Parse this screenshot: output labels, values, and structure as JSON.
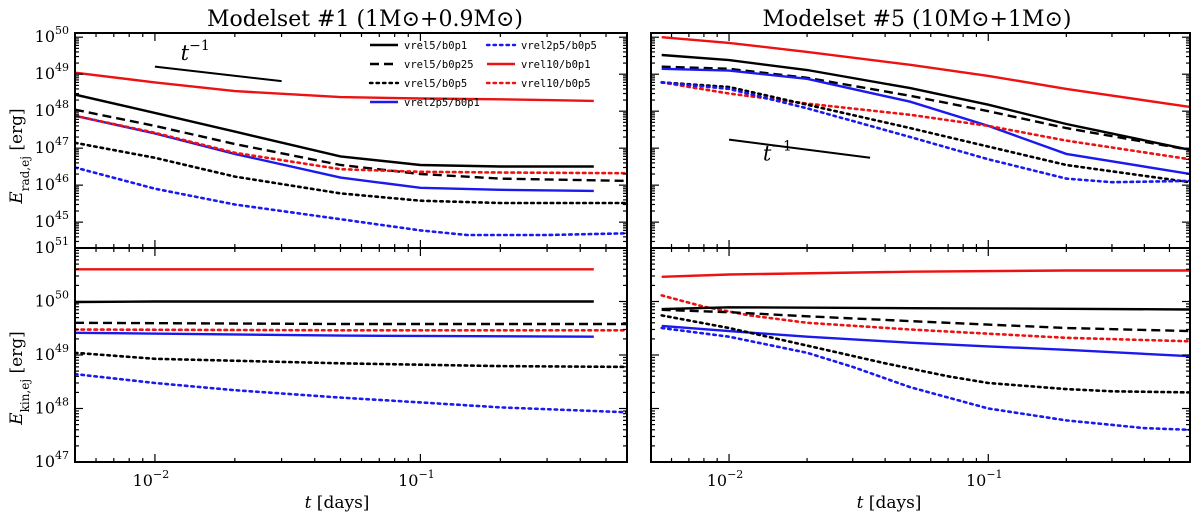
{
  "chart_data": [
    {
      "type": "line",
      "id": "rad1",
      "title": "Modelset #1 (1M⊙+0.9M⊙)",
      "ylabel": "E_rad,ej [erg]",
      "xlabel": "",
      "x_scale": "log",
      "y_scale": "log",
      "xlim": [
        0.005,
        0.6
      ],
      "ylim": [
        2e+44,
        1.3e+50
      ],
      "x_ticks": [
        {
          "v": 0.01,
          "base": "10",
          "exp": "−2"
        },
        {
          "v": 0.1,
          "base": "10",
          "exp": "−1"
        }
      ],
      "y_ticks": [
        {
          "v": 1e+45,
          "base": "10",
          "exp": "45"
        },
        {
          "v": 1e+46,
          "base": "10",
          "exp": "46"
        },
        {
          "v": 1e+47,
          "base": "10",
          "exp": "47"
        },
        {
          "v": 1e+48,
          "base": "10",
          "exp": "48"
        },
        {
          "v": 1e+49,
          "base": "10",
          "exp": "49"
        },
        {
          "v": 1e+50,
          "base": "10",
          "exp": "50"
        }
      ],
      "annotation": {
        "text": "t",
        "sup": "−1",
        "at": [
          0.0125,
          2.4e+49
        ],
        "line": [
          [
            0.01,
            1.6e+49
          ],
          [
            0.03,
            6.5e+48
          ]
        ]
      },
      "series": [
        {
          "name": "vrel10/b0p1",
          "color": "#ee1111",
          "style": "solid",
          "x": [
            0.005,
            0.01,
            0.02,
            0.05,
            0.1,
            0.2,
            0.3,
            0.45
          ],
          "y": [
            1.1e+49,
            6e+48,
            3.5e+48,
            2.4e+48,
            2.2e+48,
            2.1e+48,
            2e+48,
            1.9e+48
          ]
        },
        {
          "name": "vrel5/b0p1",
          "color": "#000000",
          "style": "solid",
          "x": [
            0.005,
            0.01,
            0.02,
            0.05,
            0.1,
            0.2,
            0.45
          ],
          "y": [
            2.8e+48,
            9e+47,
            2.8e+47,
            6e+46,
            3.5e+46,
            3.2e+46,
            3.2e+46
          ]
        },
        {
          "name": "vrel5/b0p25",
          "color": "#000000",
          "style": "dash",
          "x": [
            0.005,
            0.01,
            0.02,
            0.05,
            0.1,
            0.2,
            0.6
          ],
          "y": [
            1.1e+48,
            4e+47,
            1.3e+47,
            3.5e+46,
            2e+46,
            1.5e+46,
            1.3e+46
          ]
        },
        {
          "name": "vrel2p5/b0p1",
          "color": "#1a1aee",
          "style": "solid",
          "x": [
            0.005,
            0.01,
            0.02,
            0.05,
            0.1,
            0.2,
            0.45
          ],
          "y": [
            7.5e+47,
            2.5e+47,
            7e+46,
            1.6e+46,
            8.5e+45,
            7.5e+45,
            7e+45
          ]
        },
        {
          "name": "vrel10/b0p5",
          "color": "#ee1111",
          "style": "dot",
          "x": [
            0.005,
            0.01,
            0.02,
            0.05,
            0.1,
            0.2,
            0.6
          ],
          "y": [
            7.5e+47,
            2.6e+47,
            7.5e+46,
            2.7e+46,
            2.3e+46,
            2.2e+46,
            2.1e+46
          ]
        },
        {
          "name": "vrel5/b0p5",
          "color": "#000000",
          "style": "dot",
          "x": [
            0.005,
            0.01,
            0.02,
            0.05,
            0.1,
            0.2,
            0.6
          ],
          "y": [
            1.4e+47,
            5.5e+46,
            1.7e+46,
            6e+45,
            3.8e+45,
            3.3e+45,
            3.3e+45
          ]
        },
        {
          "name": "vrel2p5/b0p5",
          "color": "#1a1aee",
          "style": "dot",
          "x": [
            0.005,
            0.01,
            0.02,
            0.05,
            0.1,
            0.15,
            0.3,
            0.6
          ],
          "y": [
            3e+46,
            8e+45,
            3e+45,
            1.2e+45,
            6e+44,
            4.5e+44,
            4.5e+44,
            5e+44
          ]
        }
      ]
    },
    {
      "type": "line",
      "id": "rad5",
      "title": "Modelset #5 (10M⊙+1M⊙)",
      "ylabel": "",
      "xlabel": "",
      "x_scale": "log",
      "y_scale": "log",
      "xlim": [
        0.005,
        0.6
      ],
      "ylim": [
        2e+44,
        1.3e+50
      ],
      "x_ticks": [
        {
          "v": 0.01,
          "base": "10",
          "exp": "−2"
        },
        {
          "v": 0.1,
          "base": "10",
          "exp": "−1"
        }
      ],
      "y_ticks": [],
      "annotation": {
        "text": "t",
        "sup": "−1",
        "at": [
          0.0135,
          4.6e+46
        ],
        "line": [
          [
            0.01,
            1.7e+47
          ],
          [
            0.035,
            5.5e+46
          ]
        ]
      },
      "series": [
        {
          "name": "vrel10/b0p1",
          "color": "#ee1111",
          "style": "solid",
          "x": [
            0.0055,
            0.01,
            0.02,
            0.05,
            0.1,
            0.2,
            0.6
          ],
          "y": [
            1e+50,
            7e+49,
            4e+49,
            1.8e+49,
            9e+48,
            4e+48,
            1.3e+48
          ]
        },
        {
          "name": "vrel5/b0p1",
          "color": "#000000",
          "style": "solid",
          "x": [
            0.0055,
            0.01,
            0.02,
            0.05,
            0.1,
            0.2,
            0.6
          ],
          "y": [
            3.3e+49,
            2.4e+49,
            1.3e+49,
            4.2e+48,
            1.5e+48,
            4.5e+47,
            9e+46
          ]
        },
        {
          "name": "vrel5/b0p25",
          "color": "#000000",
          "style": "dash",
          "x": [
            0.0055,
            0.01,
            0.02,
            0.05,
            0.1,
            0.2,
            0.6
          ],
          "y": [
            1.6e+49,
            1.4e+49,
            8e+48,
            2.6e+48,
            1e+48,
            3.5e+47,
            9e+46
          ]
        },
        {
          "name": "vrel2p5/b0p1",
          "color": "#1a1aee",
          "style": "solid",
          "x": [
            0.0055,
            0.01,
            0.02,
            0.05,
            0.1,
            0.2,
            0.6
          ],
          "y": [
            1.4e+49,
            1.25e+49,
            7.5e+48,
            1.8e+48,
            4e+47,
            7e+46,
            2e+46
          ]
        },
        {
          "name": "vrel10/b0p5",
          "color": "#ee1111",
          "style": "dot",
          "x": [
            0.0055,
            0.01,
            0.02,
            0.05,
            0.1,
            0.2,
            0.6
          ],
          "y": [
            6e+48,
            3e+48,
            1.6e+48,
            8e+47,
            4e+47,
            1.6e+47,
            5e+46
          ]
        },
        {
          "name": "vrel5/b0p5",
          "color": "#000000",
          "style": "dot",
          "x": [
            0.0055,
            0.01,
            0.02,
            0.05,
            0.1,
            0.2,
            0.6
          ],
          "y": [
            6e+48,
            4.5e+48,
            1.5e+48,
            3.5e+47,
            1.1e+47,
            3.5e+46,
            1.2e+46
          ]
        },
        {
          "name": "vrel2p5/b0p5",
          "color": "#1a1aee",
          "style": "dot",
          "x": [
            0.0055,
            0.01,
            0.02,
            0.05,
            0.1,
            0.2,
            0.3,
            0.6
          ],
          "y": [
            6e+48,
            4e+48,
            1.2e+48,
            2e+47,
            5e+46,
            1.5e+46,
            1.2e+46,
            1.3e+46
          ]
        }
      ]
    },
    {
      "type": "line",
      "id": "kin1",
      "title": "",
      "ylabel": "E_kin,ej [erg]",
      "xlabel": "t [days]",
      "x_scale": "log",
      "y_scale": "log",
      "xlim": [
        0.005,
        0.6
      ],
      "ylim": [
        1e+47,
        1e+51
      ],
      "x_ticks": [
        {
          "v": 0.01,
          "base": "10",
          "exp": "−2"
        },
        {
          "v": 0.1,
          "base": "10",
          "exp": "−1"
        }
      ],
      "y_ticks": [
        {
          "v": 1e+47,
          "base": "10",
          "exp": "47"
        },
        {
          "v": 1e+48,
          "base": "10",
          "exp": "48"
        },
        {
          "v": 1e+49,
          "base": "10",
          "exp": "49"
        },
        {
          "v": 1e+50,
          "base": "10",
          "exp": "50"
        },
        {
          "v": 1e+51,
          "base": "10",
          "exp": "51"
        }
      ],
      "series": [
        {
          "name": "vrel10/b0p1",
          "color": "#ee1111",
          "style": "solid",
          "x": [
            0.005,
            0.45
          ],
          "y": [
            4e+50,
            4e+50
          ]
        },
        {
          "name": "vrel5/b0p1",
          "color": "#000000",
          "style": "solid",
          "x": [
            0.005,
            0.01,
            0.1,
            0.45
          ],
          "y": [
            9.8e+49,
            1e+50,
            1e+50,
            1e+50
          ]
        },
        {
          "name": "vrel5/b0p25",
          "color": "#000000",
          "style": "dash",
          "x": [
            0.005,
            0.05,
            0.6
          ],
          "y": [
            4e+49,
            3.8e+49,
            3.8e+49
          ]
        },
        {
          "name": "vrel10/b0p5",
          "color": "#ee1111",
          "style": "dot",
          "x": [
            0.005,
            0.05,
            0.6
          ],
          "y": [
            3e+49,
            2.9e+49,
            2.9e+49
          ]
        },
        {
          "name": "vrel2p5/b0p1",
          "color": "#1a1aee",
          "style": "solid",
          "x": [
            0.005,
            0.05,
            0.45
          ],
          "y": [
            2.6e+49,
            2.3e+49,
            2.2e+49
          ]
        },
        {
          "name": "vrel5/b0p5",
          "color": "#000000",
          "style": "dot",
          "x": [
            0.005,
            0.01,
            0.05,
            0.2,
            0.6
          ],
          "y": [
            1.1e+49,
            8.5e+48,
            7e+48,
            6.2e+48,
            6e+48
          ]
        },
        {
          "name": "vrel2p5/b0p5",
          "color": "#1a1aee",
          "style": "dot",
          "x": [
            0.005,
            0.01,
            0.02,
            0.05,
            0.1,
            0.2,
            0.6
          ],
          "y": [
            4.4e+48,
            3e+48,
            2.2e+48,
            1.6e+48,
            1.3e+48,
            1.05e+48,
            8.5e+47
          ]
        }
      ]
    },
    {
      "type": "line",
      "id": "kin5",
      "title": "",
      "ylabel": "",
      "xlabel": "t [days]",
      "x_scale": "log",
      "y_scale": "log",
      "xlim": [
        0.005,
        0.6
      ],
      "ylim": [
        1e+47,
        1e+51
      ],
      "x_ticks": [
        {
          "v": 0.01,
          "base": "10",
          "exp": "−2"
        },
        {
          "v": 0.1,
          "base": "10",
          "exp": "−1"
        }
      ],
      "y_ticks": [],
      "series": [
        {
          "name": "vrel10/b0p1",
          "color": "#ee1111",
          "style": "solid",
          "x": [
            0.0055,
            0.01,
            0.05,
            0.2,
            0.6
          ],
          "y": [
            2.9e+50,
            3.2e+50,
            3.6e+50,
            3.8e+50,
            3.8e+50
          ]
        },
        {
          "name": "vrel10/b0p5",
          "color": "#ee1111",
          "style": "dot",
          "x": [
            0.0055,
            0.008,
            0.012,
            0.02,
            0.05,
            0.1,
            0.2,
            0.6
          ],
          "y": [
            1.3e+50,
            8e+49,
            5.5e+49,
            4e+49,
            3e+49,
            2.5e+49,
            2.1e+49,
            1.8e+49
          ]
        },
        {
          "name": "vrel5/b0p1",
          "color": "#000000",
          "style": "solid",
          "x": [
            0.0055,
            0.01,
            0.05,
            0.2,
            0.6
          ],
          "y": [
            7.2e+49,
            7.8e+49,
            7.5e+49,
            7.3e+49,
            7.1e+49
          ]
        },
        {
          "name": "vrel5/b0p25",
          "color": "#000000",
          "style": "dash",
          "x": [
            0.0055,
            0.01,
            0.02,
            0.05,
            0.1,
            0.2,
            0.6
          ],
          "y": [
            7e+49,
            6.3e+49,
            5.3e+49,
            4.3e+49,
            3.7e+49,
            3.2e+49,
            2.8e+49
          ]
        },
        {
          "name": "vrel2p5/b0p1",
          "color": "#1a1aee",
          "style": "solid",
          "x": [
            0.0055,
            0.01,
            0.02,
            0.05,
            0.1,
            0.2,
            0.6
          ],
          "y": [
            3.5e+49,
            2.8e+49,
            2.2e+49,
            1.7e+49,
            1.45e+49,
            1.25e+49,
            9.5e+48
          ]
        },
        {
          "name": "vrel5/b0p5",
          "color": "#000000",
          "style": "dot",
          "x": [
            0.0055,
            0.01,
            0.02,
            0.04,
            0.07,
            0.1,
            0.2,
            0.3,
            0.6
          ],
          "y": [
            5.5e+49,
            3.2e+49,
            1.5e+49,
            7e+48,
            4e+48,
            3e+48,
            2.3e+48,
            2.1e+48,
            2e+48
          ]
        },
        {
          "name": "vrel2p5/b0p5",
          "color": "#1a1aee",
          "style": "dot",
          "x": [
            0.0055,
            0.01,
            0.02,
            0.03,
            0.05,
            0.1,
            0.2,
            0.4,
            0.6
          ],
          "y": [
            3.2e+49,
            2.2e+49,
            1.1e+49,
            6e+48,
            2.5e+48,
            1e+48,
            6e+47,
            4.3e+47,
            4e+47
          ]
        }
      ]
    }
  ],
  "legend": {
    "location": "upper-right of top-left panel",
    "entries": [
      {
        "name": "vrel5/b0p1",
        "color": "#000000",
        "style": "solid"
      },
      {
        "name": "vrel5/b0p25",
        "color": "#000000",
        "style": "dash"
      },
      {
        "name": "vrel5/b0p5",
        "color": "#000000",
        "style": "dot"
      },
      {
        "name": "vrel2p5/b0p1",
        "color": "#1a1aee",
        "style": "solid"
      },
      {
        "name": "vrel2p5/b0p5",
        "color": "#1a1aee",
        "style": "dot"
      },
      {
        "name": "vrel10/b0p1",
        "color": "#ee1111",
        "style": "solid"
      },
      {
        "name": "vrel10/b0p5",
        "color": "#ee1111",
        "style": "dot"
      }
    ]
  }
}
